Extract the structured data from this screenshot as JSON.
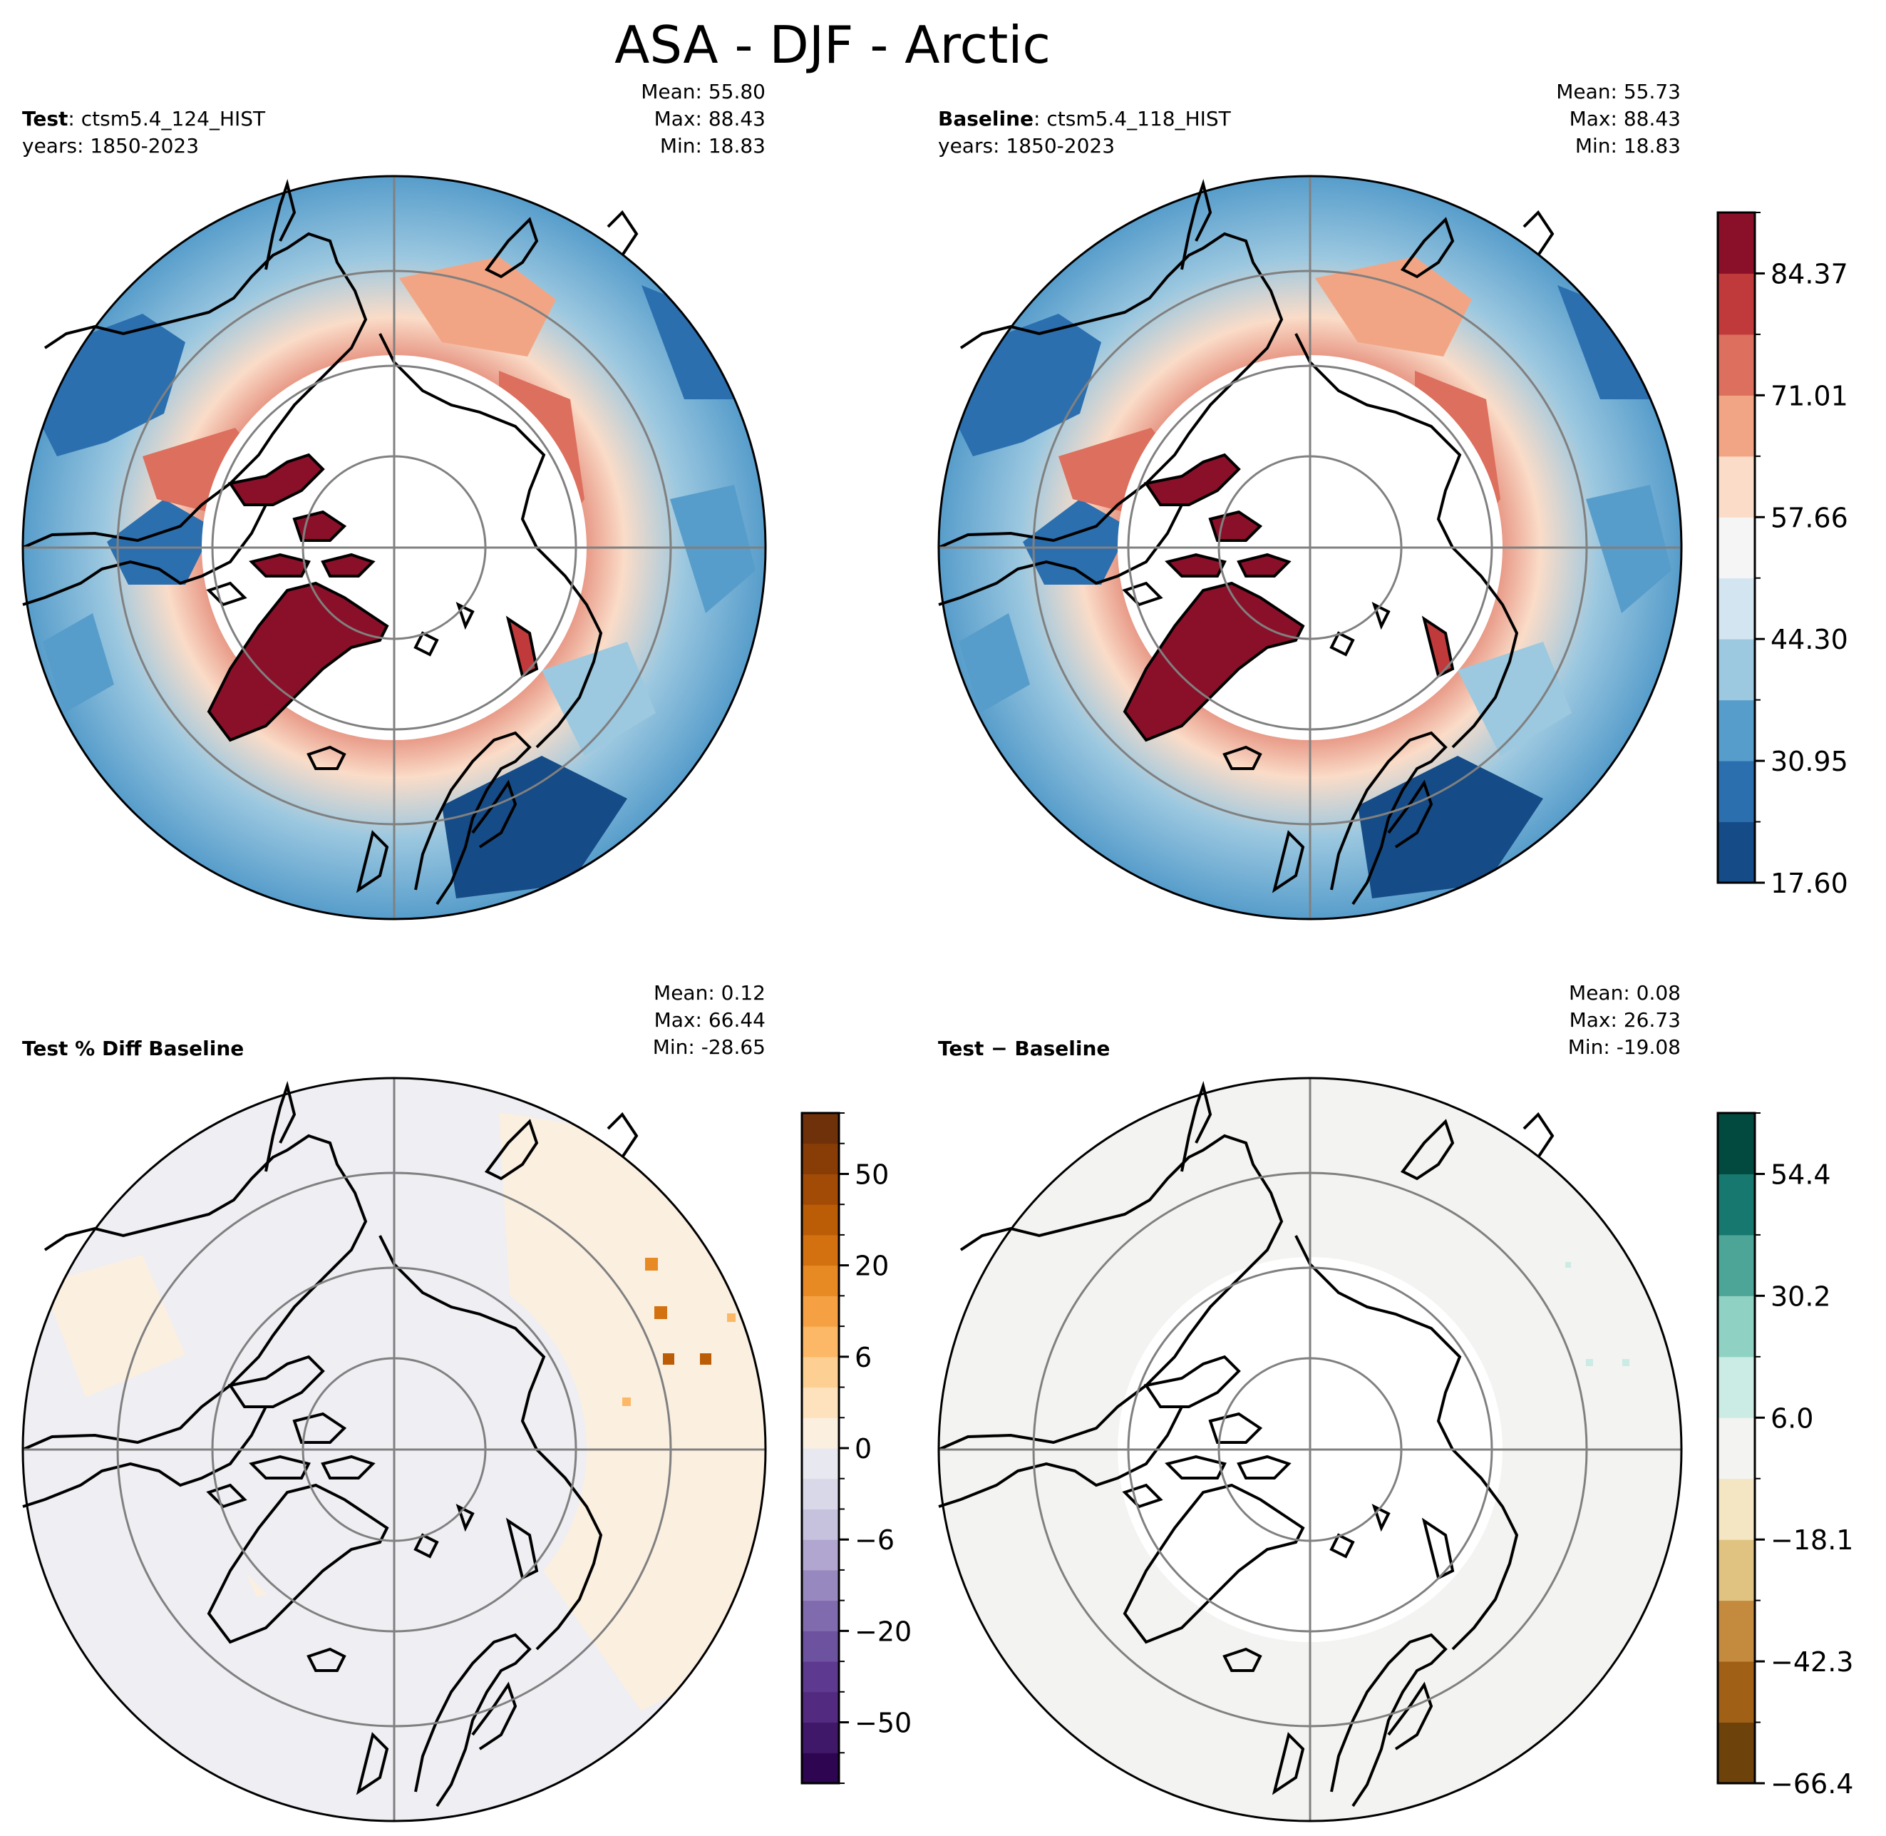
{
  "title": "ASA - DJF - Arctic",
  "panels": [
    {
      "id": "test",
      "label_bold": "Test",
      "label_sep": ":",
      "label_rest": "ctsm5.4_124_HIST",
      "years": "years: 1850-2023",
      "stats": [
        "Mean: 55.80",
        "Max: 88.43",
        "Min: 18.83"
      ]
    },
    {
      "id": "baseline",
      "label_bold": "Baseline",
      "label_sep": ":",
      "label_rest": "ctsm5.4_118_HIST",
      "years": "years: 1850-2023",
      "stats": [
        "Mean: 55.73",
        "Max: 88.43",
        "Min: 18.83"
      ]
    },
    {
      "id": "pctdiff",
      "label_bold": "Test % Diff Baseline",
      "label_sep": "",
      "label_rest": "",
      "years": "",
      "stats": [
        "Mean:  0.12",
        "Max: 66.44",
        "Min: -28.65"
      ]
    },
    {
      "id": "diff",
      "label_bold": "Test − Baseline",
      "label_sep": "",
      "label_rest": "",
      "years": "",
      "stats": [
        "Mean:  0.08",
        "Max: 26.73",
        "Min: -19.08"
      ]
    }
  ],
  "chart_data": [
    {
      "type": "heatmap",
      "name": "Test",
      "projection": "north-polar-stereographic",
      "region": "Arctic",
      "season": "DJF",
      "case": "ctsm5.4_124_HIST",
      "years": "1850-2023",
      "mean": 55.8,
      "max": 88.43,
      "min": 18.83
    },
    {
      "type": "heatmap",
      "name": "Baseline",
      "projection": "north-polar-stereographic",
      "region": "Arctic",
      "season": "DJF",
      "case": "ctsm5.4_118_HIST",
      "years": "1850-2023",
      "mean": 55.73,
      "max": 88.43,
      "min": 18.83
    },
    {
      "type": "heatmap",
      "name": "Test % Diff Baseline",
      "mean": 0.12,
      "max": 66.44,
      "min": -28.65
    },
    {
      "type": "heatmap",
      "name": "Test − Baseline",
      "mean": 0.08,
      "max": 26.73,
      "min": -19.08
    }
  ],
  "colorbars": {
    "main": {
      "levels": [
        17.6,
        24.28,
        30.95,
        37.63,
        44.3,
        50.98,
        57.66,
        64.33,
        71.01,
        77.69,
        84.37,
        91.04
      ],
      "tick_values": [
        17.6,
        30.95,
        44.3,
        57.66,
        71.01,
        84.37
      ],
      "tick_labels": [
        "17.60",
        "30.95",
        "44.30",
        "57.66",
        "71.01",
        "84.37"
      ],
      "colors": [
        "#154b86",
        "#2b6faf",
        "#579dcb",
        "#9cc8e0",
        "#d3e5f1",
        "#f5f5f5",
        "#fadcc8",
        "#f2a584",
        "#dc6f5d",
        "#c03a3c",
        "#8a1029"
      ]
    },
    "pct": {
      "levels": [
        -75,
        -60,
        -50,
        -40,
        -30,
        -20,
        -15,
        -10,
        -6,
        -4,
        -2,
        0,
        2,
        4,
        6,
        10,
        15,
        20,
        30,
        40,
        50,
        60,
        75
      ],
      "tick_values": [
        -50,
        -20,
        -6,
        0,
        6,
        20,
        50
      ],
      "tick_labels": [
        "−50",
        "−20",
        "−6",
        "0",
        "6",
        "20",
        "50"
      ],
      "colors": [
        "#2d0550",
        "#40186a",
        "#522a80",
        "#5e3990",
        "#6d529f",
        "#7f6bad",
        "#9788c0",
        "#b0a6cf",
        "#c6c2de",
        "#d8d8e8",
        "#e8e8f1",
        "#fbefe0",
        "#fde2bd",
        "#fdcf93",
        "#fcb866",
        "#f5a043",
        "#e88a23",
        "#d37110",
        "#bb5c07",
        "#a24b06",
        "#883d07",
        "#6f3109"
      ]
    },
    "diff": {
      "levels": [
        -66.4,
        -54.3,
        -42.3,
        -30.2,
        -18.1,
        -6.0,
        6.0,
        18.1,
        30.2,
        42.3,
        54.4,
        66.4
      ],
      "tick_values": [
        -66.4,
        -42.3,
        -18.1,
        6.0,
        30.2,
        54.4
      ],
      "tick_labels": [
        "−66.4",
        "−42.3",
        "−18.1",
        "6.0",
        "30.2",
        "54.4"
      ],
      "colors": [
        "#6d430b",
        "#a06016",
        "#c48a3e",
        "#e0c381",
        "#f4e5c3",
        "#f3f3f1",
        "#cbebe5",
        "#8fd2c4",
        "#4da597",
        "#16786f",
        "#024a3f"
      ]
    }
  }
}
